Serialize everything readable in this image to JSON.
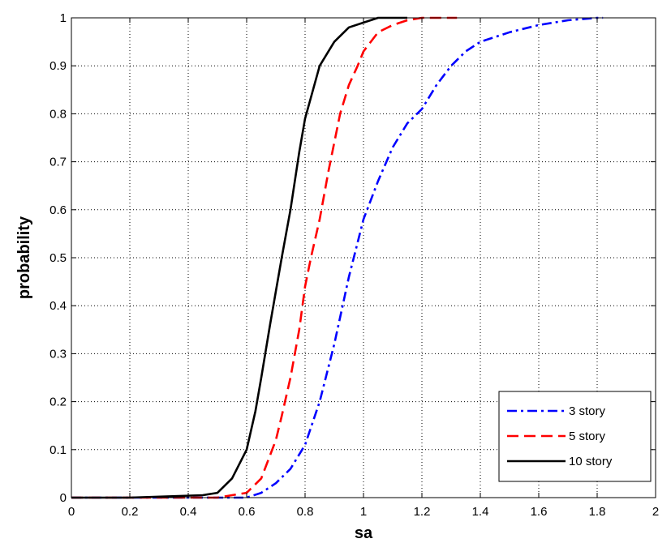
{
  "chart_data": {
    "type": "line",
    "title": "",
    "xlabel": "sa",
    "ylabel": "probability",
    "xlim": [
      0,
      2
    ],
    "ylim": [
      0,
      1
    ],
    "xticks": [
      "0",
      "0.2",
      "0.4",
      "0.6",
      "0.8",
      "1",
      "1.2",
      "1.4",
      "1.6",
      "1.8",
      "2"
    ],
    "yticks": [
      "0",
      "0.1",
      "0.2",
      "0.3",
      "0.4",
      "0.5",
      "0.6",
      "0.7",
      "0.8",
      "0.9",
      "1"
    ],
    "grid": true,
    "legend_position": "bottom-right",
    "series": [
      {
        "name": "3 story",
        "color": "#0000ff",
        "style": "dash-dot",
        "x": [
          0.0,
          0.2,
          0.5,
          0.6,
          0.65,
          0.7,
          0.75,
          0.8,
          0.85,
          0.9,
          0.95,
          1.0,
          1.05,
          1.1,
          1.15,
          1.2,
          1.25,
          1.3,
          1.35,
          1.4,
          1.5,
          1.6,
          1.7,
          1.8,
          1.82
        ],
        "y": [
          0.0,
          0.0,
          0.0,
          0.0,
          0.01,
          0.03,
          0.06,
          0.11,
          0.2,
          0.32,
          0.46,
          0.58,
          0.66,
          0.73,
          0.78,
          0.81,
          0.86,
          0.9,
          0.93,
          0.95,
          0.97,
          0.985,
          0.995,
          1.0,
          1.0
        ]
      },
      {
        "name": "5 story",
        "color": "#ff0000",
        "style": "dashed",
        "x": [
          0.0,
          0.2,
          0.5,
          0.55,
          0.6,
          0.65,
          0.7,
          0.72,
          0.75,
          0.78,
          0.8,
          0.82,
          0.85,
          0.88,
          0.9,
          0.92,
          0.95,
          0.98,
          1.0,
          1.05,
          1.1,
          1.15,
          1.2,
          1.25,
          1.3,
          1.32
        ],
        "y": [
          0.0,
          0.0,
          0.0,
          0.005,
          0.01,
          0.04,
          0.12,
          0.17,
          0.25,
          0.35,
          0.44,
          0.5,
          0.58,
          0.68,
          0.74,
          0.8,
          0.86,
          0.9,
          0.93,
          0.97,
          0.985,
          0.995,
          1.0,
          1.0,
          1.0,
          1.0
        ]
      },
      {
        "name": "10 story",
        "color": "#000000",
        "style": "solid",
        "x": [
          0.0,
          0.2,
          0.45,
          0.5,
          0.55,
          0.6,
          0.63,
          0.65,
          0.68,
          0.7,
          0.72,
          0.75,
          0.78,
          0.8,
          0.85,
          0.9,
          0.95,
          1.0,
          1.05,
          1.1,
          1.15
        ],
        "y": [
          0.0,
          0.0,
          0.005,
          0.01,
          0.04,
          0.1,
          0.18,
          0.25,
          0.36,
          0.43,
          0.5,
          0.6,
          0.72,
          0.79,
          0.9,
          0.95,
          0.98,
          0.99,
          1.0,
          1.0,
          1.0
        ]
      }
    ]
  }
}
